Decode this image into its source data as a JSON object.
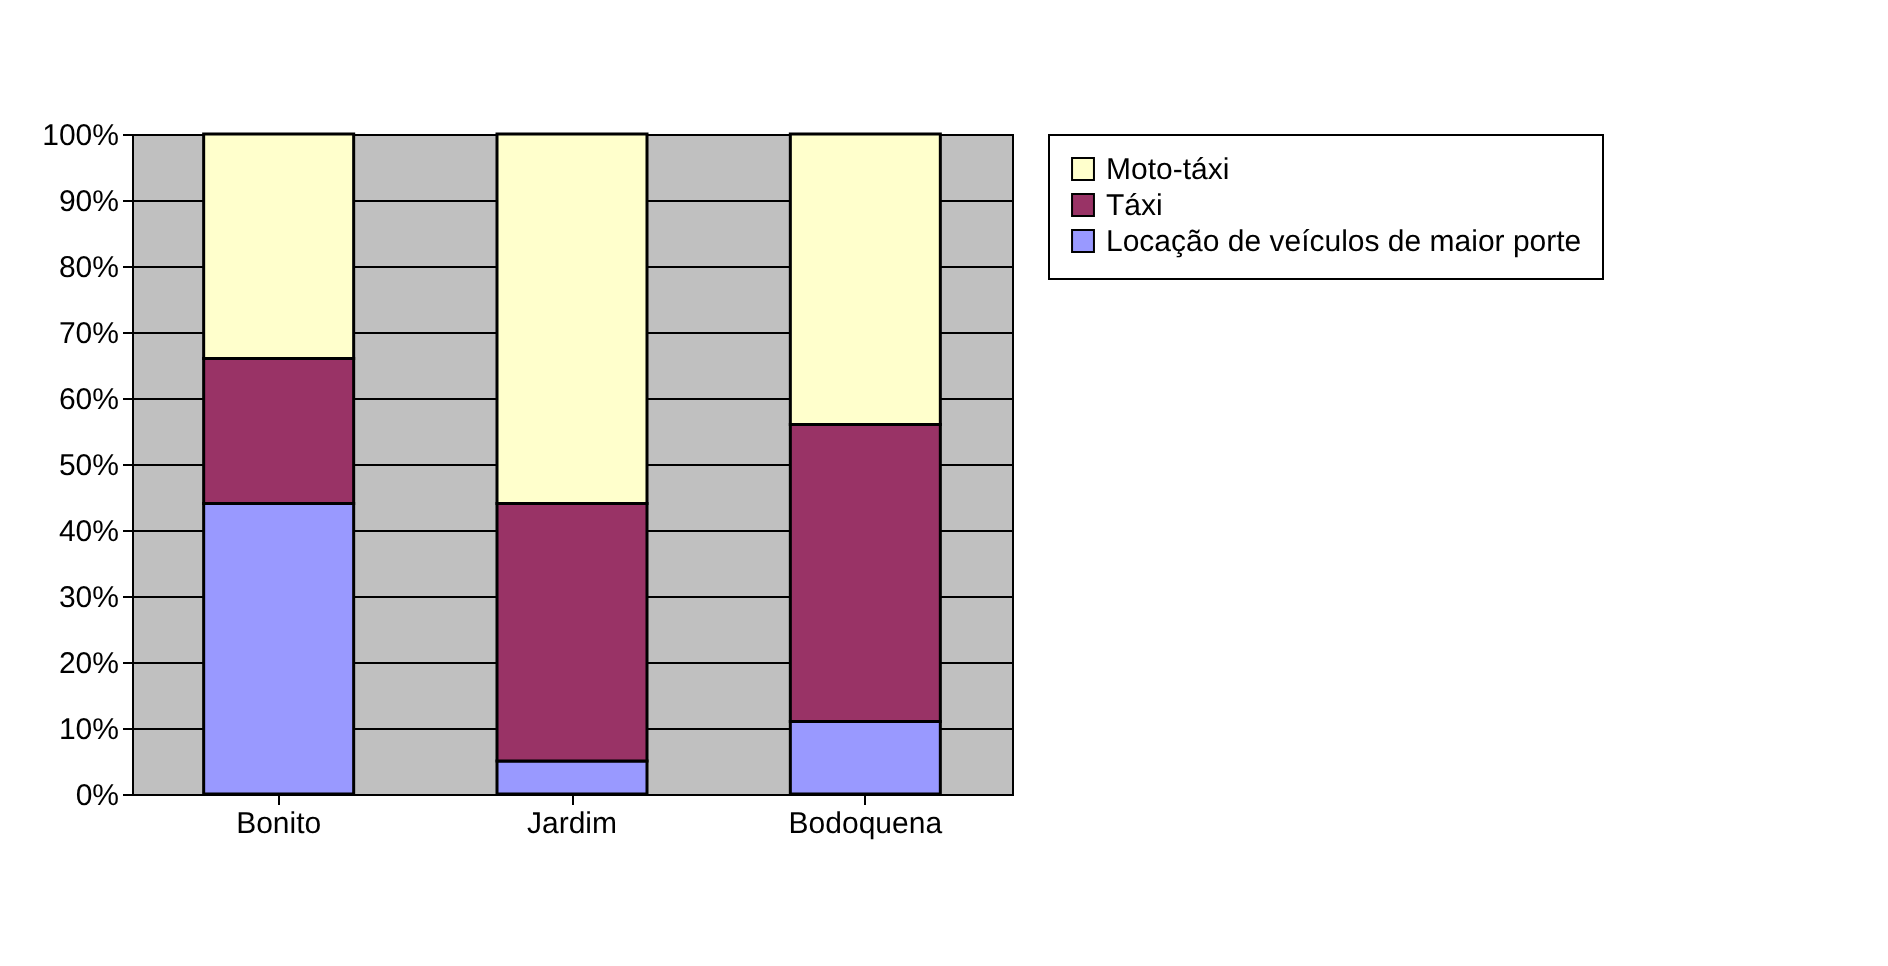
{
  "chart_data": {
    "type": "bar",
    "stacked": true,
    "categories": [
      "Bonito",
      "Jardim",
      "Bodoquena"
    ],
    "series": [
      {
        "name": "Locação de veículos de maior porte",
        "color": "#9999ff",
        "values": [
          44,
          5,
          11
        ]
      },
      {
        "name": "Táxi",
        "color": "#993366",
        "values": [
          22,
          39,
          45
        ]
      },
      {
        "name": "Moto-táxi",
        "color": "#ffffcc",
        "values": [
          34,
          56,
          44
        ]
      }
    ],
    "ylim": [
      0,
      100
    ],
    "yticks": [
      {
        "value": 0,
        "label": "0%"
      },
      {
        "value": 10,
        "label": "10%"
      },
      {
        "value": 20,
        "label": "20%"
      },
      {
        "value": 30,
        "label": "30%"
      },
      {
        "value": 40,
        "label": "40%"
      },
      {
        "value": 50,
        "label": "50%"
      },
      {
        "value": 60,
        "label": "60%"
      },
      {
        "value": 70,
        "label": "70%"
      },
      {
        "value": 80,
        "label": "80%"
      },
      {
        "value": 90,
        "label": "90%"
      },
      {
        "value": 100,
        "label": "100%"
      }
    ],
    "grid": "y",
    "legend": "right"
  }
}
